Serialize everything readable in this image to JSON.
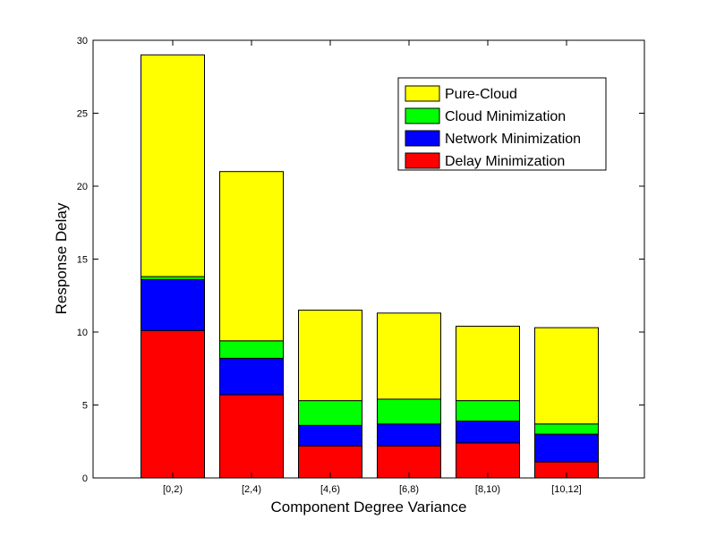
{
  "chart_data": {
    "type": "bar",
    "stacked": true,
    "xlabel": "Component Degree Variance",
    "ylabel": "Response Delay",
    "ylim": [
      0,
      30
    ],
    "yticks": [
      0,
      5,
      10,
      15,
      20,
      25,
      30
    ],
    "categories": [
      "[0,2)",
      "[2,4)",
      "[4,6)",
      "[6,8)",
      "[8,10)",
      "[10,12]"
    ],
    "series": [
      {
        "name": "Delay Minimization",
        "color": "#ff0000",
        "values": [
          10.1,
          5.7,
          2.2,
          2.2,
          2.4,
          1.1
        ]
      },
      {
        "name": "Network Minimization",
        "color": "#0000ff",
        "values": [
          3.5,
          2.5,
          1.4,
          1.5,
          1.5,
          1.9
        ]
      },
      {
        "name": "Cloud Minimization",
        "color": "#00ff00",
        "values": [
          0.2,
          1.2,
          1.7,
          1.7,
          1.4,
          0.7
        ]
      },
      {
        "name": "Pure-Cloud",
        "color": "#ffff00",
        "values": [
          15.2,
          11.6,
          6.2,
          5.9,
          5.1,
          6.6
        ]
      }
    ],
    "legend": {
      "position": "top-right",
      "order": [
        "Pure-Cloud",
        "Cloud Minimization",
        "Network Minimization",
        "Delay Minimization"
      ]
    },
    "grid": false
  }
}
